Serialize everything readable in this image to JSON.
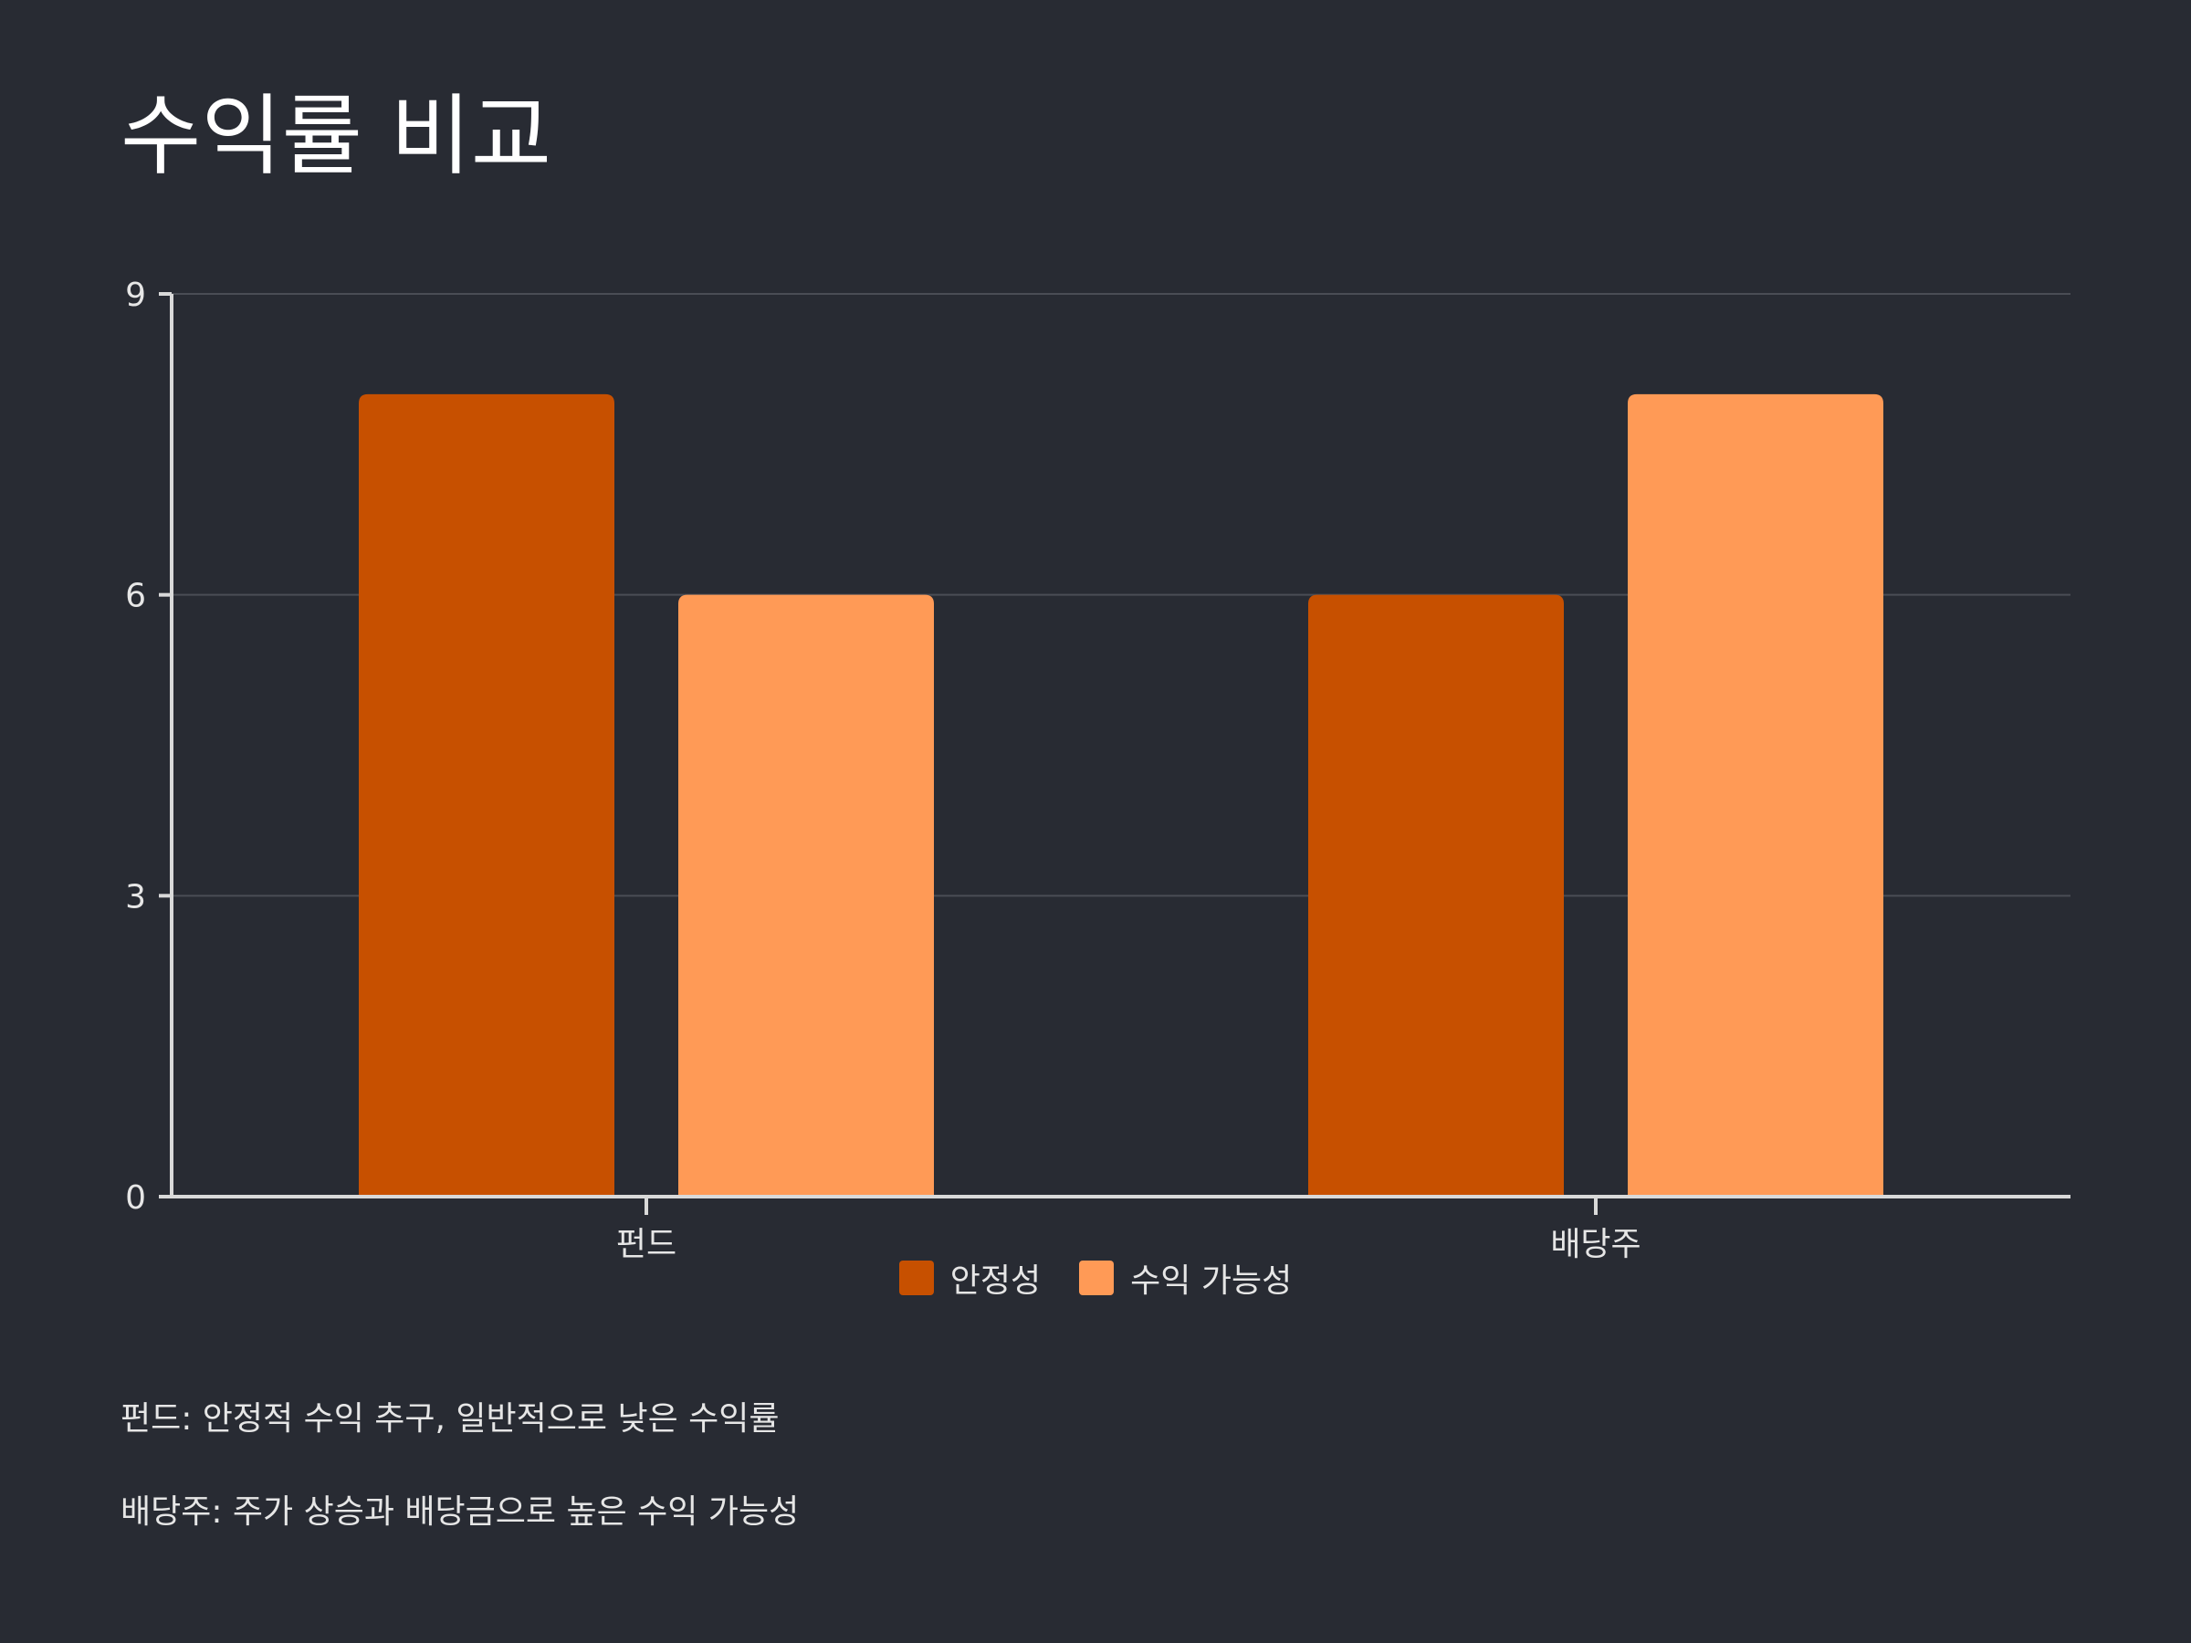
{
  "chart_data": {
    "type": "bar",
    "title": "수익률 비교",
    "categories": [
      "펀드",
      "배당주"
    ],
    "series": [
      {
        "name": "안정성",
        "values": [
          8,
          6
        ],
        "color": "#c75000"
      },
      {
        "name": "수익 가능성",
        "values": [
          6,
          8
        ],
        "color": "#ff9a56"
      }
    ],
    "ylim": [
      0,
      9
    ],
    "yticks": [
      0,
      3,
      6,
      9
    ],
    "grid": true,
    "legend_position": "bottom-center",
    "xlabel": "",
    "ylabel": ""
  },
  "notes": [
    "펀드: 안정적 수익 추구, 일반적으로 낮은 수익률",
    "배당주: 주가 상승과 배당금으로 높은 수익 가능성"
  ],
  "colors": {
    "background": "#282b33",
    "axis": "#d9d9d9",
    "grid": "#4a4d55",
    "text": "#e6e6e6"
  }
}
